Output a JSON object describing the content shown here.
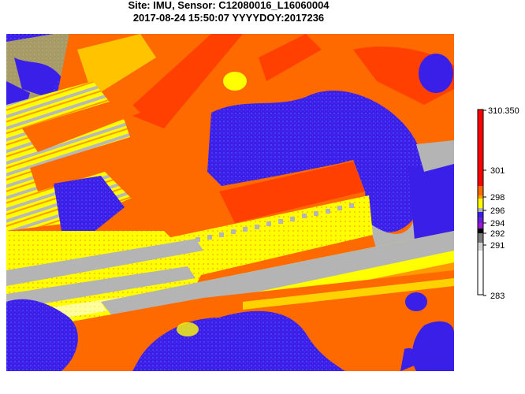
{
  "title": {
    "line1": "Site: IMU, Sensor: C12080016_L16060004",
    "line2": "2017-08-24 15:50:07 YYYYDOY:2017236"
  },
  "legend": {
    "ticks": [
      "310.350",
      "301",
      "298",
      "296",
      "294",
      "292",
      "291",
      "283"
    ],
    "colors": {
      "red": "#ff0000",
      "orange": "#ff6a00",
      "yellow": "#ffff00",
      "gray": "#b4b4b4",
      "blue": "#3a1fe8",
      "purple": "#9b1ad8",
      "white": "#ffffff"
    }
  }
}
